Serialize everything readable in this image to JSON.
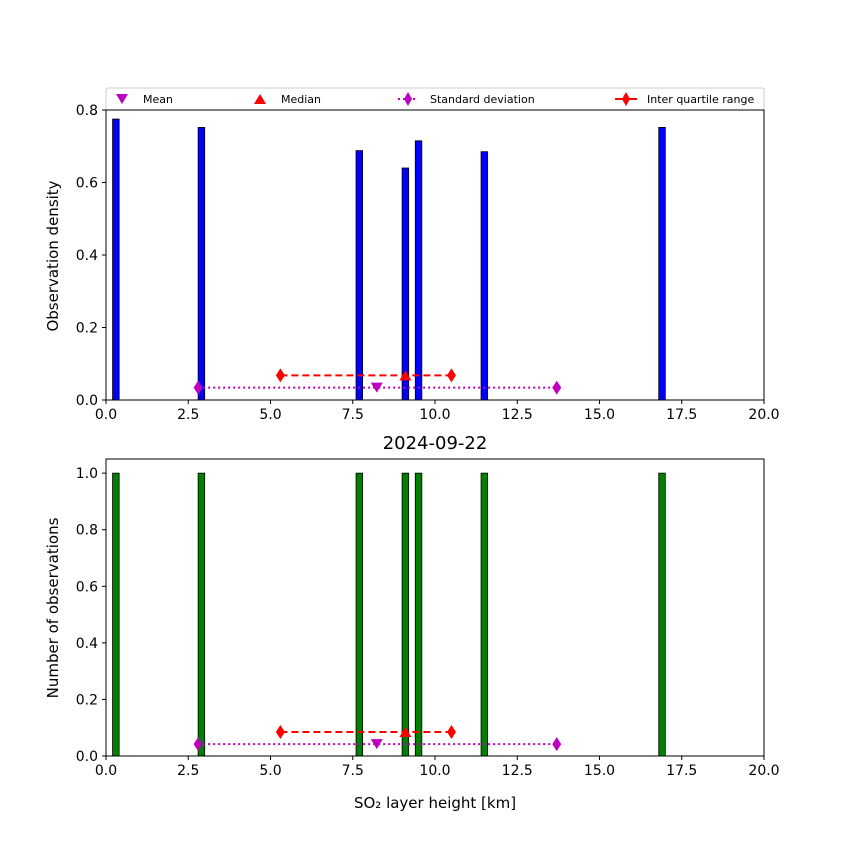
{
  "legend": {
    "mean": "Mean",
    "median": "Median",
    "std": "Standard deviation",
    "iqr": "Inter quartile range"
  },
  "colors": {
    "top_bars": "#0000ff",
    "bottom_bars": "#008000",
    "mean": "#bf00bf",
    "median": "#ff0000",
    "std": "#bf00bf",
    "iqr": "#ff0000"
  },
  "chart_data": [
    {
      "type": "bar",
      "title": "",
      "xlabel": "",
      "ylabel": "Observation density",
      "xlim": [
        0,
        20
      ],
      "ylim": [
        0,
        0.8
      ],
      "x_ticks": [
        "0.0",
        "2.5",
        "5.0",
        "7.5",
        "10.0",
        "12.5",
        "15.0",
        "17.5",
        "20.0"
      ],
      "y_ticks": [
        "0.0",
        "0.2",
        "0.4",
        "0.6",
        "0.8"
      ],
      "bar_width": 0.2,
      "x": [
        0.3,
        2.9,
        7.7,
        9.1,
        9.5,
        11.5,
        16.9
      ],
      "values": [
        0.775,
        0.752,
        0.688,
        0.64,
        0.715,
        0.685,
        0.752
      ],
      "stats": {
        "mean": 8.23,
        "median": 9.1,
        "std_range": [
          2.8,
          13.7
        ],
        "iqr_range": [
          5.3,
          10.5
        ],
        "std_y": 0.034,
        "iqr_y": 0.068
      }
    },
    {
      "type": "bar",
      "title": "2024-09-22",
      "xlabel": "SO₂ layer height [km]",
      "ylabel": "Number of observations",
      "xlim": [
        0,
        20
      ],
      "ylim": [
        0,
        1.05
      ],
      "x_ticks": [
        "0.0",
        "2.5",
        "5.0",
        "7.5",
        "10.0",
        "12.5",
        "15.0",
        "17.5",
        "20.0"
      ],
      "y_ticks": [
        "0.0",
        "0.2",
        "0.4",
        "0.6",
        "0.8",
        "1.0"
      ],
      "bar_width": 0.2,
      "x": [
        0.3,
        2.9,
        7.7,
        9.1,
        9.5,
        11.5,
        16.9
      ],
      "values": [
        1,
        1,
        1,
        1,
        1,
        1,
        1
      ],
      "stats": {
        "mean": 8.23,
        "median": 9.1,
        "std_range": [
          2.8,
          13.7
        ],
        "iqr_range": [
          5.3,
          10.5
        ],
        "std_y": 0.042,
        "iqr_y": 0.085
      }
    }
  ]
}
